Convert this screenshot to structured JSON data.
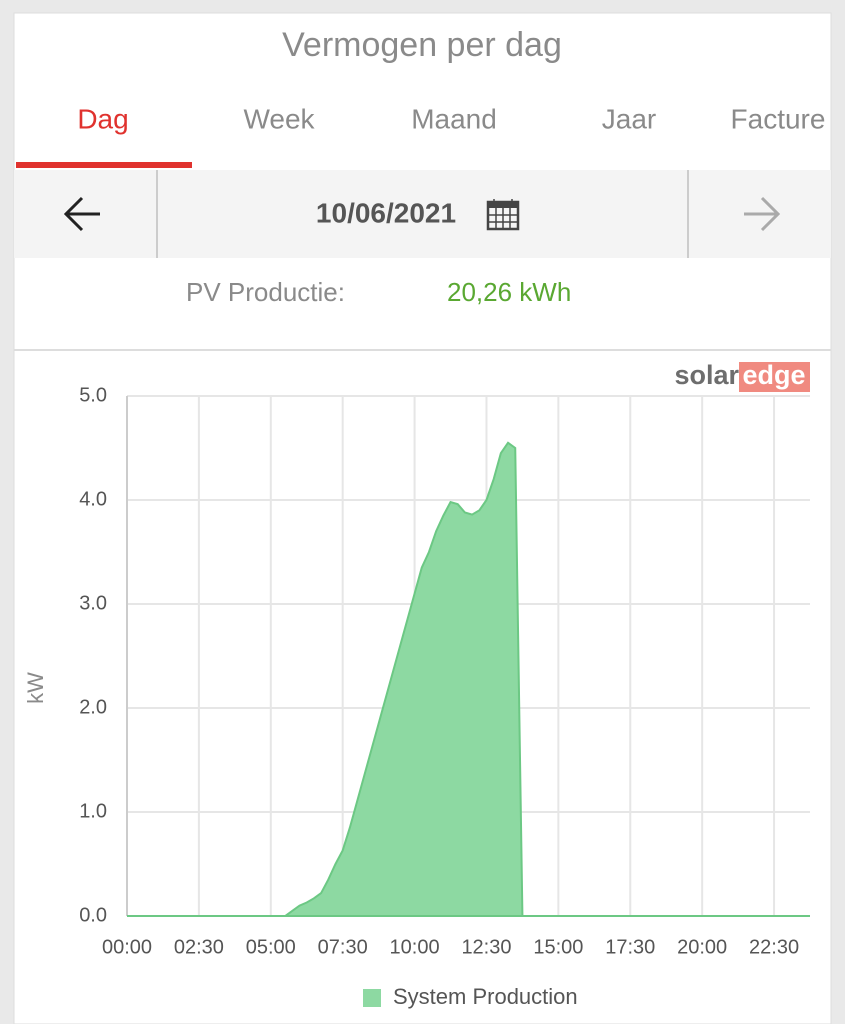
{
  "header": {
    "title": "Vermogen per dag"
  },
  "tabs": [
    "Dag",
    "Week",
    "Maand",
    "Jaar",
    "Facture"
  ],
  "date": "10/06/2021",
  "summary": {
    "label": "PV Productie:",
    "value": "20,26 kWh"
  },
  "logo": {
    "part1": "solar",
    "part2": "edge"
  },
  "chart_data": {
    "type": "area",
    "y_label": "kW",
    "x": [
      "00:00",
      "00:15",
      "00:30",
      "00:45",
      "01:00",
      "01:15",
      "01:30",
      "01:45",
      "02:00",
      "02:15",
      "02:30",
      "02:45",
      "03:00",
      "03:15",
      "03:30",
      "03:45",
      "04:00",
      "04:15",
      "04:30",
      "04:45",
      "05:00",
      "05:15",
      "05:30",
      "05:45",
      "06:00",
      "06:15",
      "06:30",
      "06:45",
      "07:00",
      "07:15",
      "07:30",
      "07:45",
      "08:00",
      "08:15",
      "08:30",
      "08:45",
      "09:00",
      "09:15",
      "09:30",
      "09:45",
      "10:00",
      "10:15",
      "10:30",
      "10:45",
      "11:00",
      "11:15",
      "11:30",
      "11:45",
      "12:00",
      "12:15",
      "12:30",
      "12:45",
      "13:00",
      "13:15",
      "13:30",
      "13:45",
      "14:00",
      "14:15",
      "14:30",
      "14:45",
      "15:00",
      "15:15",
      "15:30",
      "15:45",
      "16:00",
      "16:15",
      "16:30",
      "16:45",
      "17:00",
      "17:15",
      "17:30",
      "17:45",
      "18:00",
      "18:15",
      "18:30",
      "18:45",
      "19:00",
      "19:15",
      "19:30",
      "19:45",
      "20:00",
      "20:15",
      "20:30",
      "20:45",
      "21:00",
      "21:15",
      "21:30",
      "21:45",
      "22:00",
      "22:15",
      "22:30",
      "22:45",
      "23:00",
      "23:15",
      "23:30",
      "23:45"
    ],
    "series": [
      {
        "name": "System Production",
        "color": "#8dd9a2",
        "values": [
          0,
          0,
          0,
          0,
          0,
          0,
          0,
          0,
          0,
          0,
          0,
          0,
          0,
          0,
          0,
          0,
          0,
          0,
          0,
          0,
          0,
          0,
          0,
          0.05,
          0.1,
          0.13,
          0.17,
          0.22,
          0.35,
          0.5,
          0.63,
          0.85,
          1.1,
          1.35,
          1.6,
          1.85,
          2.1,
          2.35,
          2.6,
          2.85,
          3.1,
          3.35,
          3.5,
          3.7,
          3.85,
          3.98,
          3.96,
          3.88,
          3.86,
          3.9,
          4.0,
          4.2,
          4.45,
          4.55,
          4.5,
          0,
          0,
          0,
          0,
          0,
          0,
          0,
          0,
          0,
          0,
          0,
          0,
          0,
          0,
          0,
          0,
          0,
          0,
          0,
          0,
          0,
          0,
          0,
          0,
          0,
          0,
          0,
          0,
          0,
          0,
          0,
          0,
          0,
          0,
          0,
          0,
          0,
          0,
          0,
          0,
          0
        ]
      }
    ],
    "xlim": [
      "00:00",
      "23:45"
    ],
    "xticks": [
      "00:00",
      "02:30",
      "05:00",
      "07:30",
      "10:00",
      "12:30",
      "15:00",
      "17:30",
      "20:00",
      "22:30"
    ],
    "ylim": [
      0,
      5
    ],
    "yticks": [
      {
        "value": 0,
        "label": "0.0"
      },
      {
        "value": 1,
        "label": "1.0"
      },
      {
        "value": 2,
        "label": "2.0"
      },
      {
        "value": 3,
        "label": "3.0"
      },
      {
        "value": 4,
        "label": "4.0"
      },
      {
        "value": 5,
        "label": "5.0"
      }
    ],
    "grid": true
  }
}
